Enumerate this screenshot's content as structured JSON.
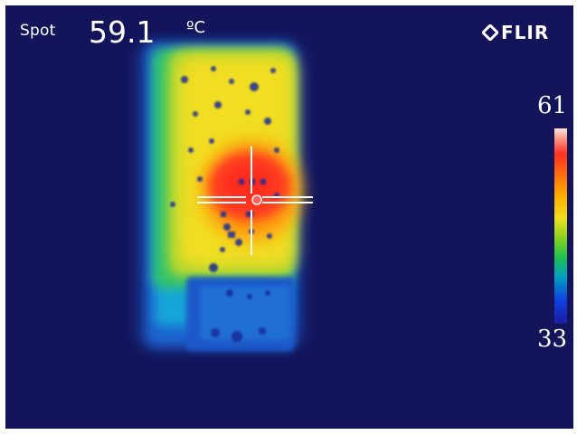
{
  "measurement": {
    "label": "Spot",
    "value": "59.1",
    "unit": "ºC"
  },
  "brand": {
    "name": "FLIR",
    "logo_icon": "flir-diamond-icon"
  },
  "scale": {
    "max": "61",
    "min": "33",
    "colors": [
      "#ffe6e6",
      "#ff3020",
      "#ffb000",
      "#f0e020",
      "#20c050",
      "#00a0c0",
      "#1040e0",
      "#1a1ca0"
    ]
  },
  "background_color": "#13145a",
  "crosshair_color": "#ffffff",
  "spot_marker_color": "#ff6060"
}
